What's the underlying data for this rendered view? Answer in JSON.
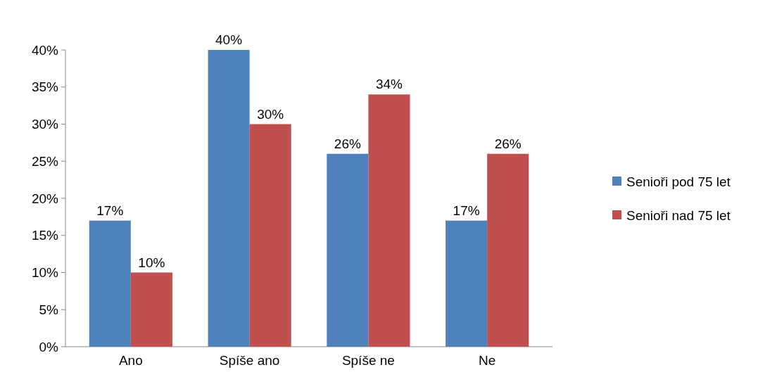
{
  "chart_data": {
    "type": "bar",
    "categories": [
      "Ano",
      "Spíše ano",
      "Spíše ne",
      "Ne"
    ],
    "series": [
      {
        "name": "Senioři pod 75 let",
        "color": "#4f81bd",
        "values": [
          17,
          40,
          26,
          17
        ],
        "value_labels": [
          "17%",
          "40%",
          "26%",
          "17%"
        ]
      },
      {
        "name": "Senioři nad 75 let",
        "color": "#c0504d",
        "values": [
          10,
          30,
          34,
          26
        ],
        "value_labels": [
          "10%",
          "30%",
          "34%",
          "26%"
        ]
      }
    ],
    "ylim": [
      0,
      40
    ],
    "yticks": [
      {
        "value": 0,
        "label": "0%"
      },
      {
        "value": 5,
        "label": "5%"
      },
      {
        "value": 10,
        "label": "10%"
      },
      {
        "value": 15,
        "label": "15%"
      },
      {
        "value": 20,
        "label": "20%"
      },
      {
        "value": 25,
        "label": "25%"
      },
      {
        "value": 30,
        "label": "30%"
      },
      {
        "value": 35,
        "label": "35%"
      },
      {
        "value": 40,
        "label": "40%"
      }
    ],
    "legend": "right"
  }
}
